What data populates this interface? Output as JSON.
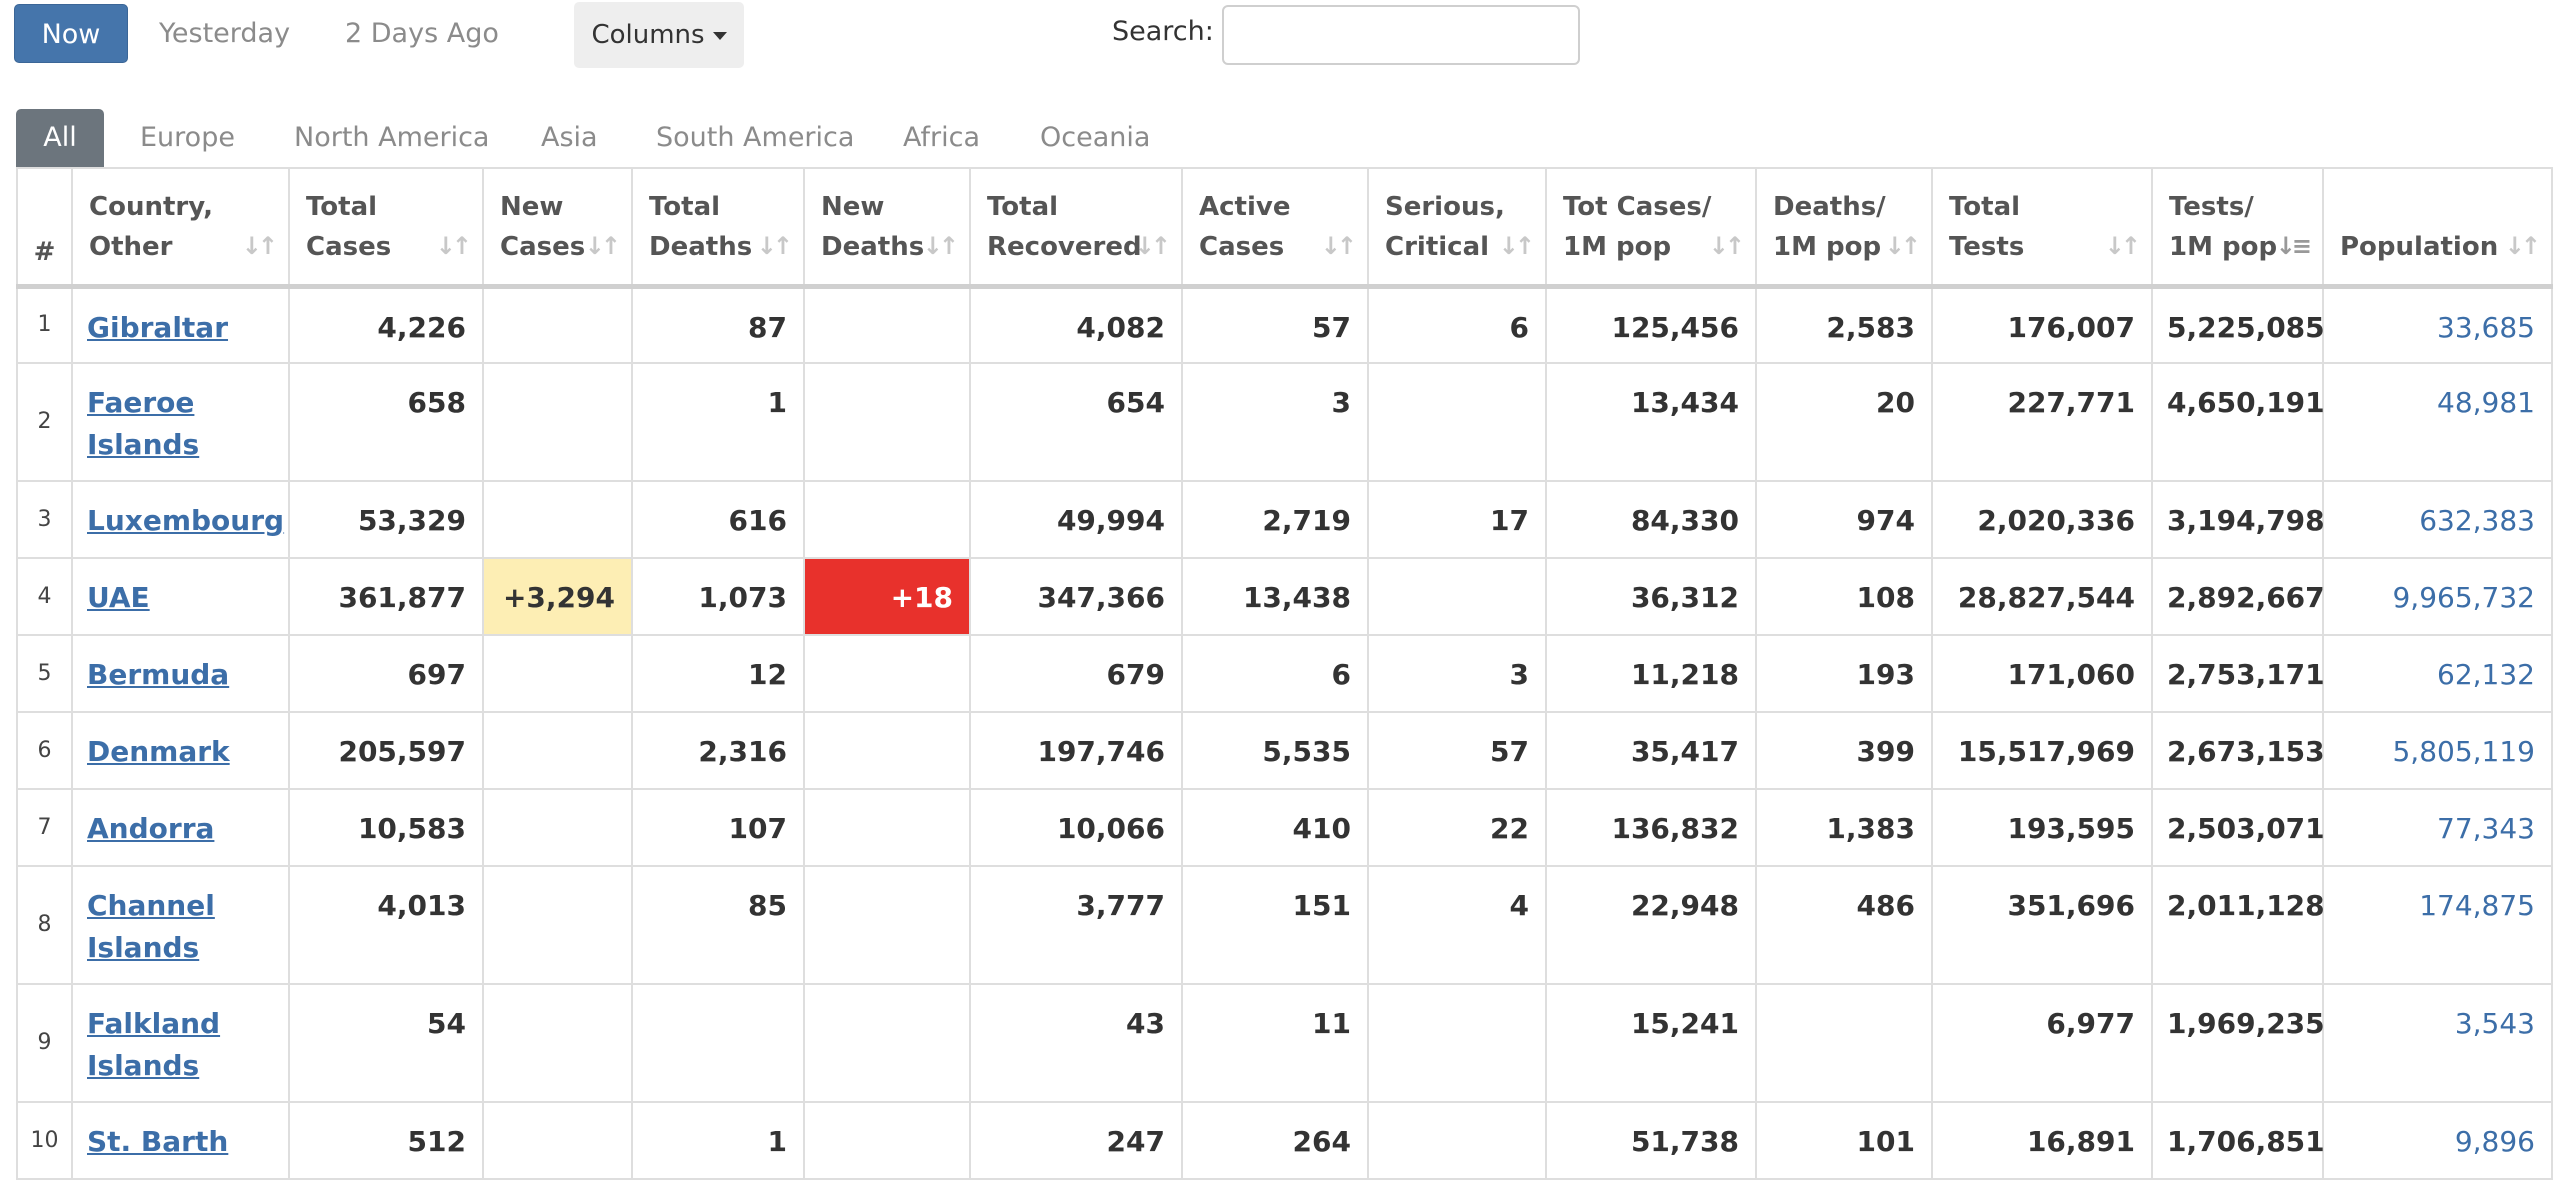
{
  "controls": {
    "now": "Now",
    "yesterday": "Yesterday",
    "two_days_ago": "2 Days Ago",
    "columns": "Columns",
    "search_label": "Search:",
    "search_value": ""
  },
  "tabs": [
    "All",
    "Europe",
    "North America",
    "Asia",
    "South America",
    "Africa",
    "Oceania"
  ],
  "headers": {
    "rank": "#",
    "country": [
      "Country,",
      "Other"
    ],
    "total_cases": [
      "Total",
      "Cases"
    ],
    "new_cases": [
      "New",
      "Cases"
    ],
    "total_deaths": [
      "Total",
      "Deaths"
    ],
    "new_deaths": [
      "New",
      "Deaths"
    ],
    "total_recovered": [
      "Total",
      "Recovered"
    ],
    "active_cases": [
      "Active",
      "Cases"
    ],
    "serious_critical": [
      "Serious,",
      "Critical"
    ],
    "cases_per_1m": [
      "Tot Cases/",
      "1M pop"
    ],
    "deaths_per_1m": [
      "Deaths/",
      "1M pop"
    ],
    "total_tests": [
      "Total",
      "Tests"
    ],
    "tests_per_1m": [
      "Tests/",
      "1M pop"
    ],
    "population": "Population"
  },
  "rows": [
    {
      "rank": "1",
      "country": "Gibraltar",
      "total_cases": "4,226",
      "new_cases": "",
      "total_deaths": "87",
      "new_deaths": "",
      "total_recovered": "4,082",
      "active_cases": "57",
      "serious_critical": "6",
      "cases_per_1m": "125,456",
      "deaths_per_1m": "2,583",
      "total_tests": "176,007",
      "tests_per_1m": "5,225,085",
      "population": "33,685"
    },
    {
      "rank": "2",
      "country": "Faeroe Islands",
      "total_cases": "658",
      "new_cases": "",
      "total_deaths": "1",
      "new_deaths": "",
      "total_recovered": "654",
      "active_cases": "3",
      "serious_critical": "",
      "cases_per_1m": "13,434",
      "deaths_per_1m": "20",
      "total_tests": "227,771",
      "tests_per_1m": "4,650,191",
      "population": "48,981"
    },
    {
      "rank": "3",
      "country": "Luxembourg",
      "total_cases": "53,329",
      "new_cases": "",
      "total_deaths": "616",
      "new_deaths": "",
      "total_recovered": "49,994",
      "active_cases": "2,719",
      "serious_critical": "17",
      "cases_per_1m": "84,330",
      "deaths_per_1m": "974",
      "total_tests": "2,020,336",
      "tests_per_1m": "3,194,798",
      "population": "632,383"
    },
    {
      "rank": "4",
      "country": "UAE",
      "total_cases": "361,877",
      "new_cases": "+3,294",
      "total_deaths": "1,073",
      "new_deaths": "+18",
      "total_recovered": "347,366",
      "active_cases": "13,438",
      "serious_critical": "",
      "cases_per_1m": "36,312",
      "deaths_per_1m": "108",
      "total_tests": "28,827,544",
      "tests_per_1m": "2,892,667",
      "population": "9,965,732"
    },
    {
      "rank": "5",
      "country": "Bermuda",
      "total_cases": "697",
      "new_cases": "",
      "total_deaths": "12",
      "new_deaths": "",
      "total_recovered": "679",
      "active_cases": "6",
      "serious_critical": "3",
      "cases_per_1m": "11,218",
      "deaths_per_1m": "193",
      "total_tests": "171,060",
      "tests_per_1m": "2,753,171",
      "population": "62,132"
    },
    {
      "rank": "6",
      "country": "Denmark",
      "total_cases": "205,597",
      "new_cases": "",
      "total_deaths": "2,316",
      "new_deaths": "",
      "total_recovered": "197,746",
      "active_cases": "5,535",
      "serious_critical": "57",
      "cases_per_1m": "35,417",
      "deaths_per_1m": "399",
      "total_tests": "15,517,969",
      "tests_per_1m": "2,673,153",
      "population": "5,805,119"
    },
    {
      "rank": "7",
      "country": "Andorra",
      "total_cases": "10,583",
      "new_cases": "",
      "total_deaths": "107",
      "new_deaths": "",
      "total_recovered": "10,066",
      "active_cases": "410",
      "serious_critical": "22",
      "cases_per_1m": "136,832",
      "deaths_per_1m": "1,383",
      "total_tests": "193,595",
      "tests_per_1m": "2,503,071",
      "population": "77,343"
    },
    {
      "rank": "8",
      "country": "Channel Islands",
      "total_cases": "4,013",
      "new_cases": "",
      "total_deaths": "85",
      "new_deaths": "",
      "total_recovered": "3,777",
      "active_cases": "151",
      "serious_critical": "4",
      "cases_per_1m": "22,948",
      "deaths_per_1m": "486",
      "total_tests": "351,696",
      "tests_per_1m": "2,011,128",
      "population": "174,875"
    },
    {
      "rank": "9",
      "country": "Falkland Islands",
      "total_cases": "54",
      "new_cases": "",
      "total_deaths": "",
      "new_deaths": "",
      "total_recovered": "43",
      "active_cases": "11",
      "serious_critical": "",
      "cases_per_1m": "15,241",
      "deaths_per_1m": "",
      "total_tests": "6,977",
      "tests_per_1m": "1,969,235",
      "population": "3,543"
    },
    {
      "rank": "10",
      "country": "St. Barth",
      "total_cases": "512",
      "new_cases": "",
      "total_deaths": "1",
      "new_deaths": "",
      "total_recovered": "247",
      "active_cases": "264",
      "serious_critical": "",
      "cases_per_1m": "51,738",
      "deaths_per_1m": "101",
      "total_tests": "16,891",
      "tests_per_1m": "1,706,851",
      "population": "9,896"
    }
  ]
}
